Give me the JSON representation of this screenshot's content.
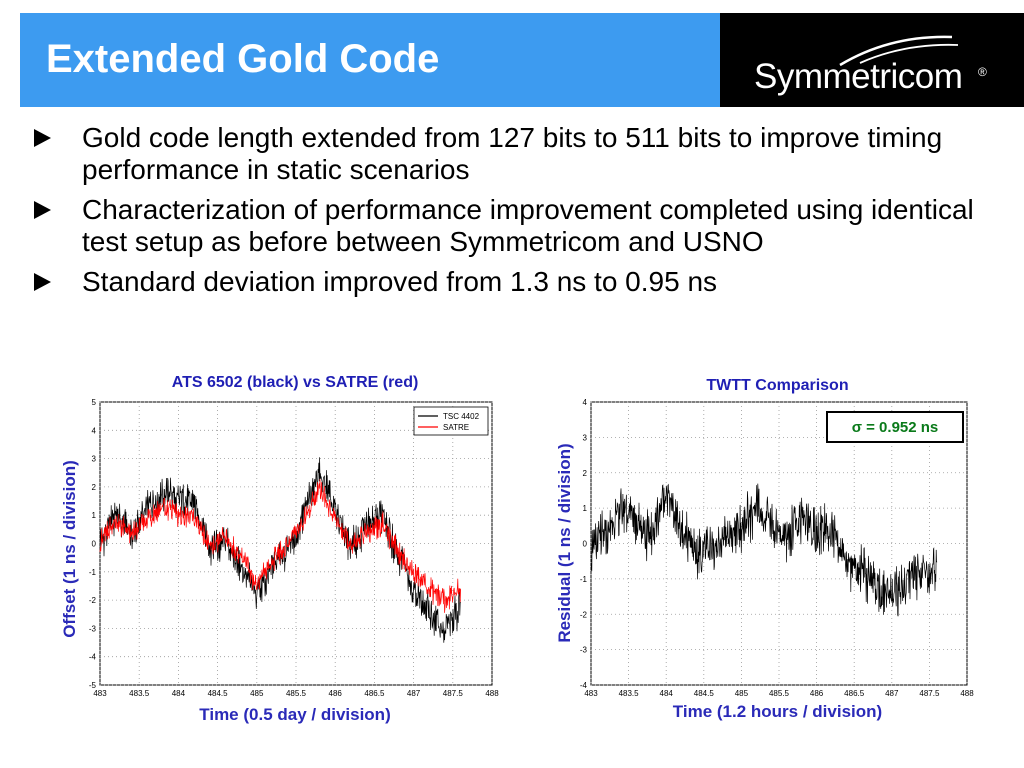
{
  "slide": {
    "title": "Extended Gold Code",
    "logo": "Symmetricom",
    "logo_mark": "®",
    "colors": {
      "header": "#3d9bf0",
      "logo_bg": "#000000",
      "axis_text": "#2a2ab8"
    }
  },
  "bullets": [
    "Gold code length extended from 127 bits to 511 bits to improve timing performance in static scenarios",
    "Characterization of performance improvement completed using identical test setup as before between Symmetricom and USNO",
    "Standard deviation improved from 1.3 ns to 0.95 ns"
  ],
  "chart_data": [
    {
      "type": "line",
      "title": "ATS 6502 (black) vs SATRE (red)",
      "xlabel": "Time (0.5 day / division)",
      "ylabel": "Offset (1 ns / division)",
      "xlim": [
        483,
        488
      ],
      "ylim": [
        -5,
        5
      ],
      "xticks": [
        "483",
        "483.5",
        "484",
        "484.5",
        "485",
        "485.5",
        "486",
        "486.5",
        "487",
        "487.5",
        "488"
      ],
      "yticks": [
        "5",
        "4",
        "3",
        "2",
        "1",
        "0",
        "-1",
        "-2",
        "-3",
        "-4",
        "-5"
      ],
      "grid": true,
      "legend_position": "top-right",
      "series": [
        {
          "name": "TSC 4402",
          "color": "#000000",
          "x": [
            483.0,
            483.2,
            483.4,
            483.6,
            483.8,
            484.0,
            484.2,
            484.4,
            484.6,
            484.8,
            485.0,
            485.2,
            485.4,
            485.6,
            485.8,
            486.0,
            486.2,
            486.4,
            486.6,
            486.8,
            487.0,
            487.2,
            487.4,
            487.6
          ],
          "values": [
            0.0,
            1.0,
            0.4,
            1.2,
            1.8,
            1.6,
            1.5,
            -0.2,
            0.0,
            -0.8,
            -1.8,
            -0.8,
            -0.2,
            1.0,
            2.6,
            1.2,
            -0.2,
            0.6,
            1.0,
            -0.4,
            -1.6,
            -2.4,
            -3.2,
            -2.2
          ]
        },
        {
          "name": "SATRE",
          "color": "#ff0000",
          "x": [
            483.0,
            483.2,
            483.4,
            483.6,
            483.8,
            484.0,
            484.2,
            484.4,
            484.6,
            484.8,
            485.0,
            485.2,
            485.4,
            485.6,
            485.8,
            486.0,
            486.2,
            486.4,
            486.6,
            486.8,
            487.0,
            487.2,
            487.4,
            487.6
          ],
          "values": [
            0.0,
            0.8,
            0.3,
            0.9,
            1.3,
            1.0,
            1.0,
            -0.1,
            0.2,
            -0.5,
            -1.4,
            -0.6,
            0.0,
            0.8,
            2.0,
            0.8,
            -0.1,
            0.4,
            0.7,
            -0.3,
            -1.0,
            -1.6,
            -2.0,
            -1.6
          ]
        }
      ]
    },
    {
      "type": "line",
      "title": "TWTT Comparison",
      "xlabel": "Time (1.2 hours / division)",
      "ylabel": "Residual (1 ns / division)",
      "xlim": [
        483,
        488
      ],
      "ylim": [
        -4,
        4
      ],
      "xticks": [
        "483",
        "483.5",
        "484",
        "484.5",
        "485",
        "485.5",
        "486",
        "486.5",
        "487",
        "487.5",
        "488"
      ],
      "yticks": [
        "4",
        "3",
        "2",
        "1",
        "0",
        "-1",
        "-2",
        "-3",
        "-4"
      ],
      "grid": true,
      "annotation": "σ = 0.952 ns",
      "series": [
        {
          "name": "",
          "color": "#000000",
          "x": [
            483.0,
            483.2,
            483.4,
            483.6,
            483.8,
            484.0,
            484.2,
            484.4,
            484.6,
            484.8,
            485.0,
            485.2,
            485.4,
            485.6,
            485.8,
            486.0,
            486.2,
            486.4,
            486.6,
            486.8,
            487.0,
            487.2,
            487.4,
            487.6
          ],
          "values": [
            -0.1,
            0.3,
            1.0,
            0.6,
            0.2,
            1.5,
            0.4,
            -0.4,
            0.0,
            0.3,
            0.4,
            1.0,
            0.6,
            0.2,
            0.7,
            0.3,
            0.4,
            -0.6,
            -0.8,
            -1.2,
            -1.6,
            -1.0,
            -0.9,
            -0.8
          ]
        }
      ]
    }
  ]
}
